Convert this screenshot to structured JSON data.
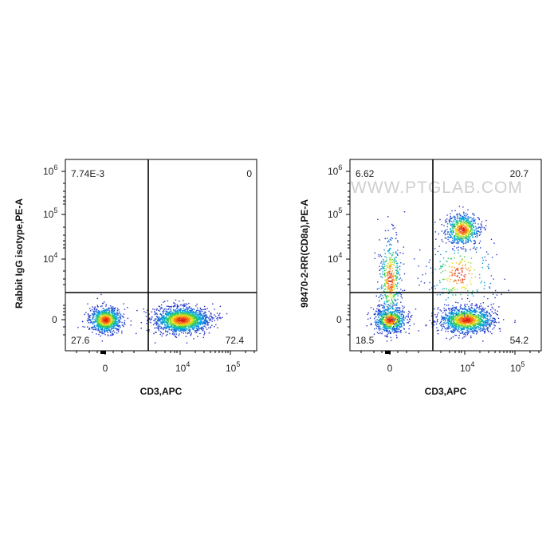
{
  "chart_data": [
    {
      "type": "scatter",
      "xlabel": "CD3,APC",
      "ylabel": "Rabbit IgG isotype,PE-A",
      "x_ticks": [
        "0",
        "10",
        "10"
      ],
      "x_tick_exp": [
        "",
        "4",
        "5"
      ],
      "y_ticks": [
        "0",
        "10",
        "10",
        "10"
      ],
      "y_tick_exp": [
        "",
        "4",
        "5",
        "6"
      ],
      "quadrant_values": {
        "upper_left": "7.74E-3",
        "upper_right": "0",
        "lower_left": "27.6",
        "lower_right": "72.4"
      },
      "watermark": "",
      "clusters": [
        {
          "name": "",
          "x": 0,
          "y": 0,
          "n": 900
        },
        {
          "name": "",
          "x": 11000,
          "y": 0,
          "n": 1600
        }
      ]
    },
    {
      "type": "scatter",
      "xlabel": "CD3,APC",
      "ylabel": "98470-2-RR(CD8a),PE-A",
      "x_ticks": [
        "0",
        "10",
        "10"
      ],
      "x_tick_exp": [
        "",
        "4",
        "5"
      ],
      "y_ticks": [
        "0",
        "10",
        "10",
        "10"
      ],
      "y_tick_exp": [
        "",
        "4",
        "5",
        "6"
      ],
      "quadrant_values": {
        "upper_left": "6.62",
        "upper_right": "20.7",
        "lower_left": "18.5",
        "lower_right": "54.2"
      },
      "watermark": "WWW.PTGLAB.COM",
      "clusters": [
        {
          "name": "",
          "x": 0,
          "y": 0,
          "n": 700
        },
        {
          "name": "",
          "x": 0,
          "y": 3000,
          "n": 450
        },
        {
          "name": "",
          "x": 11000,
          "y": 0,
          "n": 1300
        },
        {
          "name": "",
          "x": 9000,
          "y": 60000,
          "n": 650
        },
        {
          "name": "",
          "x": 8000,
          "y": 4000,
          "n": 250
        }
      ]
    }
  ]
}
